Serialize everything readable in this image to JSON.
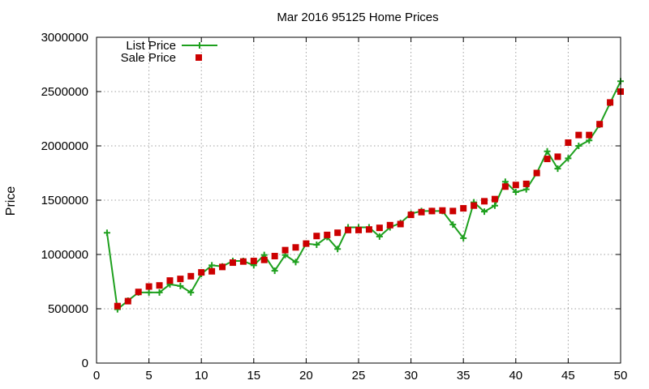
{
  "chart_data": {
    "type": "line",
    "title": "Mar 2016 95125 Home Prices",
    "xlabel": "",
    "ylabel": "Price",
    "xlim": [
      0,
      50
    ],
    "ylim": [
      0,
      3000000
    ],
    "x_ticks": [
      0,
      5,
      10,
      15,
      20,
      25,
      30,
      35,
      40,
      45,
      50
    ],
    "y_ticks": [
      0,
      500000,
      1000000,
      1500000,
      2000000,
      2500000,
      3000000
    ],
    "grid": true,
    "legend_position": "top-left",
    "series": [
      {
        "name": "List Price",
        "style": "line-with-plus-markers",
        "color": "#1ea01e",
        "x": [
          1,
          2,
          3,
          4,
          5,
          6,
          7,
          8,
          9,
          10,
          11,
          12,
          13,
          14,
          15,
          16,
          17,
          18,
          19,
          20,
          21,
          22,
          23,
          24,
          25,
          26,
          27,
          28,
          29,
          30,
          31,
          32,
          33,
          34,
          35,
          36,
          37,
          38,
          39,
          40,
          41,
          42,
          43,
          44,
          45,
          46,
          47,
          48,
          49,
          50
        ],
        "y": [
          1200000,
          495000,
          575000,
          650000,
          650000,
          650000,
          725000,
          710000,
          650000,
          820000,
          900000,
          890000,
          940000,
          940000,
          900000,
          995000,
          850000,
          995000,
          930000,
          1100000,
          1090000,
          1160000,
          1050000,
          1250000,
          1250000,
          1250000,
          1165000,
          1250000,
          1290000,
          1375000,
          1400000,
          1400000,
          1400000,
          1275000,
          1150000,
          1480000,
          1395000,
          1450000,
          1670000,
          1575000,
          1600000,
          1750000,
          1950000,
          1790000,
          1885000,
          2000000,
          2050000,
          2195000,
          2395000,
          2595000
        ]
      },
      {
        "name": "Sale Price",
        "style": "square-markers",
        "color": "#cc0000",
        "x": [
          2,
          3,
          4,
          5,
          6,
          7,
          8,
          9,
          10,
          11,
          12,
          13,
          14,
          15,
          16,
          17,
          18,
          19,
          20,
          21,
          22,
          23,
          24,
          25,
          26,
          27,
          28,
          29,
          30,
          31,
          32,
          33,
          34,
          35,
          36,
          37,
          38,
          39,
          40,
          41,
          42,
          43,
          44,
          45,
          46,
          47,
          48,
          49,
          50
        ],
        "y": [
          525000,
          570000,
          655000,
          705000,
          715000,
          760000,
          775000,
          800000,
          835000,
          845000,
          885000,
          925000,
          935000,
          940000,
          950000,
          985000,
          1040000,
          1065000,
          1100000,
          1170000,
          1180000,
          1200000,
          1225000,
          1225000,
          1230000,
          1245000,
          1270000,
          1280000,
          1365000,
          1390000,
          1400000,
          1405000,
          1400000,
          1425000,
          1450000,
          1490000,
          1510000,
          1625000,
          1640000,
          1650000,
          1750000,
          1880000,
          1900000,
          2030000,
          2100000,
          2100000,
          2200000,
          2400000,
          2500000
        ]
      }
    ]
  }
}
